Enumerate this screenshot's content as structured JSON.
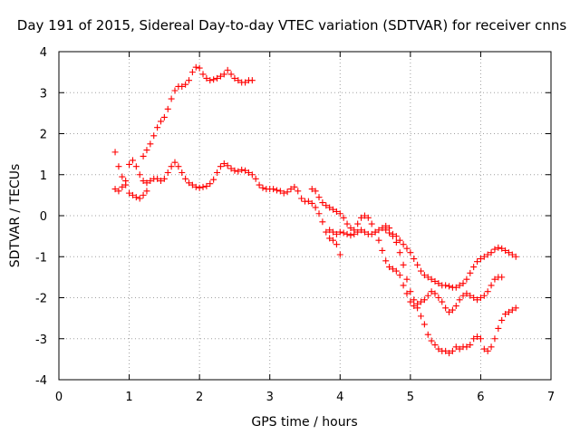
{
  "chart_data": {
    "type": "scatter",
    "title": "Day 191 of 2015, Sidereal Day-to-day VTEC variation (SDTVAR) for receiver cnns",
    "xlabel": "GPS time / hours",
    "ylabel": "SDTVAR / TECUs",
    "xlim": [
      0,
      7
    ],
    "ylim": [
      -4,
      4
    ],
    "xticks": [
      "0",
      "1",
      "2",
      "3",
      "4",
      "5",
      "6",
      "7"
    ],
    "yticks": [
      "-4",
      "-3",
      "-2",
      "-1",
      "0",
      "1",
      "2",
      "3",
      "4"
    ],
    "grid": true,
    "marker": "+",
    "color": "#ff0000",
    "series": [
      {
        "points": [
          [
            0.8,
            1.55
          ],
          [
            0.85,
            1.2
          ],
          [
            0.9,
            0.95
          ],
          [
            0.95,
            0.85
          ],
          [
            1.0,
            1.25
          ],
          [
            1.05,
            1.35
          ],
          [
            1.1,
            1.2
          ],
          [
            1.15,
            1.0
          ],
          [
            1.2,
            0.85
          ],
          [
            1.25,
            0.8
          ],
          [
            1.3,
            0.85
          ],
          [
            1.35,
            0.9
          ],
          [
            1.4,
            0.9
          ],
          [
            1.45,
            0.85
          ],
          [
            1.5,
            0.9
          ],
          [
            1.55,
            1.05
          ],
          [
            1.6,
            1.2
          ],
          [
            1.65,
            1.3
          ],
          [
            1.7,
            1.2
          ],
          [
            1.75,
            1.05
          ],
          [
            1.8,
            0.9
          ],
          [
            1.85,
            0.8
          ],
          [
            1.9,
            0.75
          ],
          [
            1.95,
            0.7
          ],
          [
            2.0,
            0.68
          ],
          [
            2.05,
            0.7
          ],
          [
            2.1,
            0.72
          ],
          [
            2.15,
            0.78
          ],
          [
            2.2,
            0.88
          ],
          [
            2.25,
            1.05
          ],
          [
            2.3,
            1.2
          ],
          [
            2.35,
            1.27
          ],
          [
            2.4,
            1.22
          ],
          [
            2.45,
            1.15
          ],
          [
            2.5,
            1.1
          ],
          [
            2.55,
            1.08
          ],
          [
            2.6,
            1.12
          ],
          [
            2.65,
            1.1
          ],
          [
            2.7,
            1.05
          ],
          [
            2.75,
            1.0
          ],
          [
            2.8,
            0.9
          ],
          [
            2.85,
            0.75
          ],
          [
            2.9,
            0.68
          ],
          [
            2.95,
            0.65
          ],
          [
            3.0,
            0.65
          ],
          [
            3.05,
            0.65
          ],
          [
            3.1,
            0.62
          ],
          [
            3.15,
            0.6
          ],
          [
            3.2,
            0.55
          ],
          [
            3.25,
            0.58
          ],
          [
            3.3,
            0.65
          ],
          [
            3.35,
            0.7
          ],
          [
            3.4,
            0.6
          ],
          [
            3.45,
            0.42
          ],
          [
            3.5,
            0.35
          ],
          [
            3.55,
            0.35
          ],
          [
            3.6,
            0.3
          ],
          [
            3.65,
            0.2
          ],
          [
            3.7,
            0.05
          ],
          [
            3.75,
            -0.15
          ],
          [
            3.8,
            -0.4
          ],
          [
            3.85,
            -0.55
          ],
          [
            3.9,
            -0.6
          ],
          [
            3.95,
            -0.7
          ],
          [
            4.0,
            -0.95
          ]
        ]
      },
      {
        "points": [
          [
            0.8,
            0.65
          ],
          [
            0.85,
            0.6
          ],
          [
            0.9,
            0.7
          ],
          [
            0.95,
            0.75
          ],
          [
            1.0,
            0.55
          ],
          [
            1.05,
            0.5
          ],
          [
            1.1,
            0.45
          ],
          [
            1.15,
            0.42
          ],
          [
            1.2,
            0.5
          ],
          [
            1.25,
            0.6
          ]
        ]
      },
      {
        "points": [
          [
            1.2,
            1.45
          ],
          [
            1.25,
            1.6
          ],
          [
            1.3,
            1.75
          ],
          [
            1.35,
            1.95
          ],
          [
            1.4,
            2.15
          ],
          [
            1.45,
            2.3
          ],
          [
            1.5,
            2.4
          ],
          [
            1.55,
            2.6
          ],
          [
            1.6,
            2.85
          ],
          [
            1.65,
            3.05
          ],
          [
            1.7,
            3.15
          ],
          [
            1.75,
            3.15
          ],
          [
            1.8,
            3.2
          ],
          [
            1.85,
            3.3
          ],
          [
            1.9,
            3.5
          ],
          [
            1.95,
            3.62
          ],
          [
            2.0,
            3.6
          ],
          [
            2.05,
            3.45
          ],
          [
            2.1,
            3.35
          ],
          [
            2.15,
            3.3
          ],
          [
            2.2,
            3.32
          ],
          [
            2.25,
            3.35
          ],
          [
            2.3,
            3.4
          ],
          [
            2.35,
            3.45
          ],
          [
            2.4,
            3.55
          ],
          [
            2.45,
            3.45
          ],
          [
            2.5,
            3.35
          ],
          [
            2.55,
            3.3
          ],
          [
            2.6,
            3.25
          ],
          [
            2.65,
            3.25
          ],
          [
            2.7,
            3.3
          ],
          [
            2.75,
            3.3
          ]
        ]
      },
      {
        "points": [
          [
            3.6,
            0.65
          ],
          [
            3.65,
            0.6
          ],
          [
            3.7,
            0.45
          ],
          [
            3.75,
            0.32
          ],
          [
            3.8,
            0.25
          ],
          [
            3.85,
            0.2
          ],
          [
            3.9,
            0.15
          ],
          [
            3.95,
            0.1
          ],
          [
            4.0,
            0.05
          ],
          [
            4.05,
            -0.05
          ],
          [
            4.1,
            -0.2
          ],
          [
            4.15,
            -0.3
          ],
          [
            4.2,
            -0.35
          ],
          [
            4.25,
            -0.2
          ],
          [
            4.3,
            -0.05
          ],
          [
            4.35,
            0.0
          ],
          [
            4.4,
            -0.05
          ],
          [
            4.45,
            -0.2
          ],
          [
            4.5,
            -0.4
          ],
          [
            4.55,
            -0.6
          ],
          [
            4.6,
            -0.85
          ],
          [
            4.65,
            -1.1
          ],
          [
            4.7,
            -1.25
          ],
          [
            4.75,
            -1.3
          ],
          [
            4.8,
            -1.35
          ],
          [
            4.85,
            -1.45
          ],
          [
            4.9,
            -1.7
          ],
          [
            4.95,
            -1.9
          ],
          [
            5.0,
            -2.1
          ],
          [
            5.05,
            -2.2
          ],
          [
            5.1,
            -2.15
          ],
          [
            5.15,
            -2.1
          ],
          [
            5.2,
            -2.05
          ],
          [
            5.25,
            -1.95
          ],
          [
            5.3,
            -1.85
          ],
          [
            5.35,
            -1.9
          ],
          [
            5.4,
            -2.0
          ],
          [
            5.45,
            -2.1
          ],
          [
            5.5,
            -2.25
          ],
          [
            5.55,
            -2.35
          ],
          [
            5.6,
            -2.3
          ],
          [
            5.65,
            -2.2
          ],
          [
            5.7,
            -2.05
          ],
          [
            5.75,
            -1.95
          ],
          [
            5.8,
            -1.9
          ],
          [
            5.85,
            -1.95
          ],
          [
            5.9,
            -2.0
          ],
          [
            5.95,
            -2.05
          ],
          [
            6.0,
            -2.0
          ],
          [
            6.05,
            -1.95
          ],
          [
            6.1,
            -1.85
          ],
          [
            6.15,
            -1.7
          ],
          [
            6.2,
            -1.55
          ],
          [
            6.25,
            -1.5
          ],
          [
            6.3,
            -1.5
          ]
        ]
      },
      {
        "points": [
          [
            3.85,
            -0.35
          ],
          [
            3.9,
            -0.4
          ],
          [
            3.95,
            -0.45
          ],
          [
            4.0,
            -0.4
          ],
          [
            4.05,
            -0.42
          ],
          [
            4.1,
            -0.45
          ],
          [
            4.15,
            -0.48
          ],
          [
            4.2,
            -0.45
          ],
          [
            4.25,
            -0.4
          ],
          [
            4.3,
            -0.35
          ],
          [
            4.35,
            -0.4
          ],
          [
            4.4,
            -0.45
          ],
          [
            4.45,
            -0.45
          ],
          [
            4.5,
            -0.4
          ],
          [
            4.55,
            -0.35
          ],
          [
            4.6,
            -0.3
          ],
          [
            4.65,
            -0.35
          ],
          [
            4.7,
            -0.42
          ],
          [
            4.75,
            -0.5
          ],
          [
            4.8,
            -0.65
          ],
          [
            4.85,
            -0.9
          ],
          [
            4.9,
            -1.2
          ],
          [
            4.95,
            -1.55
          ],
          [
            5.0,
            -1.85
          ],
          [
            5.05,
            -2.05
          ],
          [
            5.1,
            -2.25
          ],
          [
            5.15,
            -2.45
          ],
          [
            5.2,
            -2.65
          ],
          [
            5.25,
            -2.9
          ],
          [
            5.3,
            -3.05
          ],
          [
            5.35,
            -3.15
          ],
          [
            5.4,
            -3.25
          ],
          [
            5.45,
            -3.3
          ],
          [
            5.5,
            -3.3
          ],
          [
            5.55,
            -3.35
          ],
          [
            5.6,
            -3.3
          ],
          [
            5.65,
            -3.2
          ],
          [
            5.7,
            -3.25
          ],
          [
            5.75,
            -3.2
          ],
          [
            5.8,
            -3.2
          ],
          [
            5.85,
            -3.15
          ],
          [
            5.9,
            -3.0
          ],
          [
            5.95,
            -2.95
          ],
          [
            6.0,
            -3.0
          ],
          [
            6.05,
            -3.25
          ],
          [
            6.1,
            -3.3
          ],
          [
            6.15,
            -3.2
          ],
          [
            6.2,
            -3.0
          ],
          [
            6.25,
            -2.75
          ],
          [
            6.3,
            -2.55
          ],
          [
            6.35,
            -2.4
          ],
          [
            6.4,
            -2.35
          ],
          [
            6.45,
            -2.3
          ],
          [
            6.5,
            -2.25
          ]
        ]
      },
      {
        "points": [
          [
            4.65,
            -0.25
          ],
          [
            4.7,
            -0.3
          ],
          [
            4.75,
            -0.45
          ],
          [
            4.8,
            -0.5
          ],
          [
            4.85,
            -0.6
          ],
          [
            4.9,
            -0.7
          ],
          [
            4.95,
            -0.8
          ],
          [
            5.0,
            -0.9
          ],
          [
            5.05,
            -1.05
          ],
          [
            5.1,
            -1.2
          ],
          [
            5.15,
            -1.35
          ],
          [
            5.2,
            -1.45
          ],
          [
            5.25,
            -1.5
          ],
          [
            5.3,
            -1.55
          ],
          [
            5.35,
            -1.6
          ],
          [
            5.4,
            -1.65
          ],
          [
            5.45,
            -1.7
          ],
          [
            5.5,
            -1.7
          ],
          [
            5.55,
            -1.72
          ],
          [
            5.6,
            -1.75
          ],
          [
            5.65,
            -1.75
          ],
          [
            5.7,
            -1.7
          ],
          [
            5.75,
            -1.65
          ],
          [
            5.8,
            -1.55
          ],
          [
            5.85,
            -1.4
          ],
          [
            5.9,
            -1.25
          ],
          [
            5.95,
            -1.12
          ],
          [
            6.0,
            -1.05
          ],
          [
            6.05,
            -1.0
          ],
          [
            6.1,
            -0.95
          ],
          [
            6.15,
            -0.9
          ],
          [
            6.2,
            -0.82
          ],
          [
            6.25,
            -0.78
          ],
          [
            6.3,
            -0.8
          ],
          [
            6.35,
            -0.85
          ],
          [
            6.4,
            -0.9
          ],
          [
            6.45,
            -0.95
          ],
          [
            6.5,
            -1.0
          ]
        ]
      }
    ]
  }
}
